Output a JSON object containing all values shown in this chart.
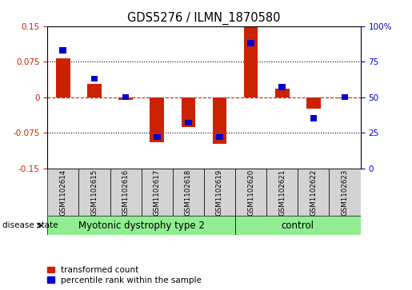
{
  "title": "GDS5276 / ILMN_1870580",
  "samples": [
    "GSM1102614",
    "GSM1102615",
    "GSM1102616",
    "GSM1102617",
    "GSM1102618",
    "GSM1102619",
    "GSM1102620",
    "GSM1102621",
    "GSM1102622",
    "GSM1102623"
  ],
  "red_values": [
    0.082,
    0.028,
    -0.005,
    -0.095,
    -0.063,
    -0.098,
    0.152,
    0.018,
    -0.025,
    -0.002
  ],
  "blue_values_pct": [
    83,
    63,
    50,
    22,
    32,
    22,
    88,
    57,
    35,
    50
  ],
  "groups": [
    {
      "label": "Myotonic dystrophy type 2",
      "start": 0,
      "end": 6,
      "color": "#90EE90"
    },
    {
      "label": "control",
      "start": 6,
      "end": 10,
      "color": "#90EE90"
    }
  ],
  "ylim_left": [
    -0.15,
    0.15
  ],
  "ylim_right": [
    0,
    100
  ],
  "yticks_left": [
    -0.15,
    -0.075,
    0,
    0.075,
    0.15
  ],
  "ytick_labels_left": [
    "-0.15",
    "-0.075",
    "0",
    "0.075",
    "0.15"
  ],
  "yticks_right": [
    0,
    25,
    50,
    75,
    100
  ],
  "ytick_labels_right": [
    "0",
    "25",
    "50",
    "75",
    "100%"
  ],
  "red_color": "#CC2200",
  "blue_color": "#0000CC",
  "bar_width": 0.45,
  "blue_bar_width": 0.22,
  "blue_bar_height": 0.013,
  "legend_red_label": "transformed count",
  "legend_blue_label": "percentile rank within the sample",
  "disease_state_label": "disease state",
  "sample_bg_color": "#D3D3D3",
  "group_label_fontsize": 8.5,
  "title_fontsize": 10.5,
  "tick_fontsize": 7.5,
  "sample_fontsize": 6.2
}
